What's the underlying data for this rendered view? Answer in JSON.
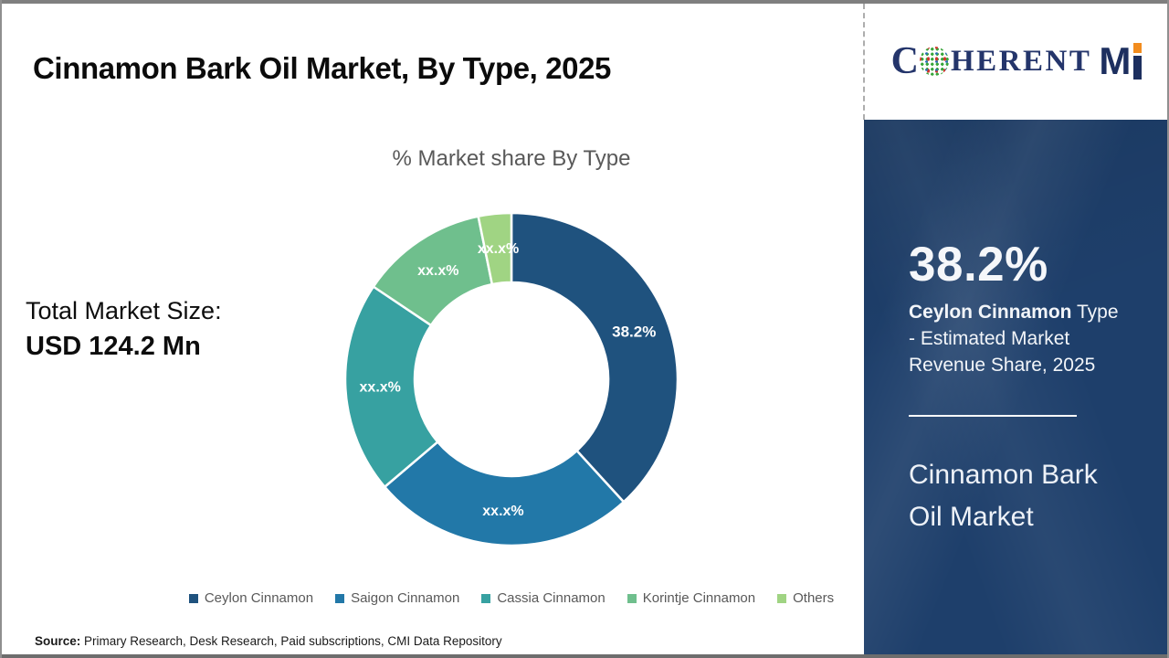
{
  "page": {
    "title": "Cinnamon Bark Oil Market, By Type, 2025",
    "source_label": "Source:",
    "source_text": " Primary Research, Desk Research, Paid subscriptions, CMI Data Repository"
  },
  "brand": {
    "logo_c": "C",
    "logo_herent": "HERENT",
    "logo_m": "M",
    "navy": "#1d2f5f",
    "orange": "#f28c1e"
  },
  "left_stats": {
    "label": "Total Market Size:",
    "value": "USD 124.2 Mn"
  },
  "sidebar": {
    "background": "#1e3f6b",
    "stat_value": "38.2%",
    "stat_desc_bold": "Ceylon Cinnamon",
    "stat_desc_rest": " Type - Estimated Market Revenue Share, 2025",
    "market_name": "Cinnamon Bark Oil Market"
  },
  "chart_data": {
    "type": "pie",
    "donut": true,
    "title": "% Market share By Type",
    "categories": [
      "Ceylon Cinnamon",
      "Saigon Cinnamon",
      "Cassia Cinnamon",
      "Korintje Cinnamon",
      "Others"
    ],
    "values": [
      38.2,
      25.6,
      20.6,
      12.4,
      3.2
    ],
    "labels": [
      "38.2%",
      "xx.x%",
      "xx.x%",
      "xx.x%",
      "xx.x%"
    ],
    "colors": [
      "#1f527e",
      "#2278a8",
      "#37a1a1",
      "#6fbf8d",
      "#a0d483"
    ],
    "start_angle_deg": 0,
    "direction": "clockwise",
    "legend_position": "bottom",
    "label_color": "#ffffff"
  }
}
